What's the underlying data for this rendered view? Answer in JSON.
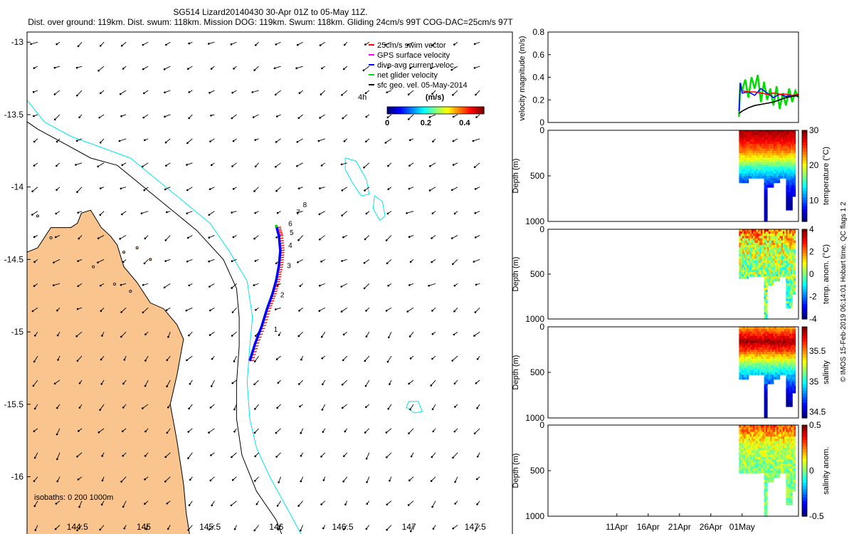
{
  "header": {
    "title": "SG514 Lizard20140430 30-Apr 01Z to 05-May 11Z.",
    "stats": "Dist. over ground: 119km. Dist. swum: 118km. Mission DOG: 119km. Swum: 118km. Gliding 24cm/s 99T COG-DAC=25cm/s 97T"
  },
  "copyright": "© IMOS 15-Feb-2019 06:14:01 Hobart time. QC flags 1  2",
  "colors": {
    "land": "#f9c48e",
    "isobath200": "#000000",
    "isobath1000": "#00e5ee",
    "swim": "#ff0000",
    "gps": "#ff00ff",
    "dac": "#0000ff",
    "net": "#00dd00",
    "geo": "#000000"
  },
  "chart_data": [
    {
      "id": "map",
      "type": "scatter",
      "title": "glider track and surface geostrophic velocity",
      "x_ticks": [
        "144.5",
        "145",
        "145.5",
        "146",
        "146.5",
        "147",
        "147.5"
      ],
      "y_ticks": [
        "-13",
        "-13.5",
        "-14",
        "-14.5",
        "-15",
        "-15.5",
        "-16"
      ],
      "xlim": [
        144.12,
        147.78
      ],
      "ylim": [
        -16.42,
        -12.93
      ],
      "legend": [
        {
          "label": "25cm/s swim vector",
          "color": "#ff0000"
        },
        {
          "label": "GPS surface velocity",
          "color": "#ff00ff"
        },
        {
          "label": "dive-avg current veloc.",
          "color": "#0000ff"
        },
        {
          "label": "net glider velocity",
          "color": "#00dd00"
        },
        {
          "label": "sfc geo. vel. 05-May-2014",
          "color": "#000000"
        }
      ],
      "scale_label": "4h",
      "colorbar": {
        "title": "(m/s)",
        "ticks": [
          "0",
          "0.2",
          "0.4"
        ],
        "range": [
          0,
          0.5
        ]
      },
      "isobath_label": "isobaths: 0   200  1000m",
      "track_labels": [
        {
          "t": "1",
          "lon": 145.98,
          "lat": -15.0
        },
        {
          "t": "2",
          "lon": 146.03,
          "lat": -14.76
        },
        {
          "t": "3",
          "lon": 146.08,
          "lat": -14.56
        },
        {
          "t": "4",
          "lon": 146.09,
          "lat": -14.42
        },
        {
          "t": "5",
          "lon": 146.1,
          "lat": -14.33
        },
        {
          "t": "6",
          "lon": 146.09,
          "lat": -14.27
        },
        {
          "t": "7",
          "lon": 146.15,
          "lat": -14.19
        },
        {
          "t": "8",
          "lon": 146.2,
          "lat": -14.14
        }
      ],
      "track": [
        [
          145.8,
          -15.2
        ],
        [
          145.84,
          -15.08
        ],
        [
          145.89,
          -14.96
        ],
        [
          145.93,
          -14.84
        ],
        [
          145.97,
          -14.74
        ],
        [
          146.0,
          -14.64
        ],
        [
          146.02,
          -14.54
        ],
        [
          146.03,
          -14.44
        ],
        [
          146.02,
          -14.34
        ],
        [
          146.0,
          -14.27
        ]
      ],
      "coast": [
        [
          144.12,
          -14.45
        ],
        [
          144.2,
          -14.42
        ],
        [
          144.3,
          -14.28
        ],
        [
          144.45,
          -14.28
        ],
        [
          144.5,
          -14.25
        ],
        [
          144.53,
          -14.18
        ],
        [
          144.6,
          -14.16
        ],
        [
          144.68,
          -14.28
        ],
        [
          144.75,
          -14.34
        ],
        [
          144.8,
          -14.4
        ],
        [
          144.85,
          -14.55
        ],
        [
          144.95,
          -14.66
        ],
        [
          145.05,
          -14.8
        ],
        [
          145.15,
          -14.84
        ],
        [
          145.25,
          -14.95
        ],
        [
          145.3,
          -15.05
        ],
        [
          145.25,
          -15.3
        ],
        [
          145.2,
          -15.5
        ],
        [
          145.25,
          -15.75
        ],
        [
          145.3,
          -16.05
        ],
        [
          145.32,
          -16.25
        ],
        [
          145.35,
          -16.42
        ],
        [
          144.12,
          -16.42
        ]
      ],
      "iso200": [
        [
          144.12,
          -13.55
        ],
        [
          144.2,
          -13.6
        ],
        [
          144.4,
          -13.7
        ],
        [
          144.6,
          -13.8
        ],
        [
          144.8,
          -13.85
        ],
        [
          145.0,
          -14.0
        ],
        [
          145.2,
          -14.15
        ],
        [
          145.4,
          -14.3
        ],
        [
          145.6,
          -14.5
        ],
        [
          145.7,
          -14.7
        ],
        [
          145.72,
          -14.9
        ],
        [
          145.72,
          -15.1
        ],
        [
          145.7,
          -15.35
        ],
        [
          145.7,
          -15.6
        ],
        [
          145.74,
          -15.85
        ],
        [
          145.85,
          -16.1
        ],
        [
          146.0,
          -16.3
        ],
        [
          146.05,
          -16.42
        ]
      ],
      "iso1000": [
        [
          144.12,
          -13.4
        ],
        [
          144.25,
          -13.55
        ],
        [
          144.45,
          -13.65
        ],
        [
          144.6,
          -13.7
        ],
        [
          144.9,
          -13.8
        ],
        [
          145.1,
          -13.95
        ],
        [
          145.3,
          -14.1
        ],
        [
          145.5,
          -14.25
        ],
        [
          145.65,
          -14.45
        ],
        [
          145.78,
          -14.65
        ],
        [
          145.82,
          -14.9
        ],
        [
          145.8,
          -15.1
        ],
        [
          145.78,
          -15.35
        ],
        [
          145.8,
          -15.6
        ],
        [
          145.85,
          -15.8
        ],
        [
          145.95,
          -16.0
        ],
        [
          146.1,
          -16.25
        ],
        [
          146.2,
          -16.42
        ]
      ],
      "reef1": [
        [
          146.52,
          -13.8
        ],
        [
          146.6,
          -13.82
        ],
        [
          146.68,
          -13.95
        ],
        [
          146.7,
          -14.05
        ],
        [
          146.64,
          -14.06
        ],
        [
          146.58,
          -13.98
        ],
        [
          146.52,
          -13.88
        ]
      ],
      "reef2": [
        [
          146.74,
          -14.06
        ],
        [
          146.8,
          -14.1
        ],
        [
          146.82,
          -14.2
        ],
        [
          146.78,
          -14.23
        ],
        [
          146.73,
          -14.15
        ]
      ],
      "reef3": [
        [
          147.0,
          -15.48
        ],
        [
          147.07,
          -15.48
        ],
        [
          147.1,
          -15.55
        ],
        [
          147.04,
          -15.56
        ],
        [
          146.98,
          -15.52
        ]
      ]
    },
    {
      "id": "velocity",
      "type": "line",
      "ylabel": "velocity magnitude (m/s)",
      "ylim": [
        0,
        0.8
      ],
      "y_ticks": [
        "0",
        "0.2",
        "0.4",
        "0.6",
        "0.8"
      ],
      "xlim": [
        0,
        40
      ],
      "series": [
        {
          "name": "net glider velocity",
          "color": "#00dd00",
          "x": [
            30.5,
            30.7,
            31,
            31.5,
            32,
            32.5,
            33,
            33.5,
            34,
            34.5,
            35,
            35.5,
            36,
            36.5,
            37,
            37.5,
            38,
            38.5,
            39,
            39.5,
            40
          ],
          "y": [
            0.05,
            0.35,
            0.28,
            0.38,
            0.22,
            0.4,
            0.3,
            0.42,
            0.18,
            0.36,
            0.2,
            0.3,
            0.15,
            0.32,
            0.12,
            0.26,
            0.15,
            0.3,
            0.18,
            0.28,
            0.22
          ]
        },
        {
          "name": "dive-avg current veloc.",
          "color": "#0000ff",
          "x": [
            30.5,
            30.7,
            31,
            32,
            33,
            34,
            35,
            36,
            37,
            38,
            39,
            40
          ],
          "y": [
            0.1,
            0.35,
            0.26,
            0.27,
            0.24,
            0.3,
            0.26,
            0.22,
            0.25,
            0.23,
            0.24,
            0.23
          ]
        },
        {
          "name": "swim vector",
          "color": "#ff0000",
          "x": [
            31,
            32,
            33,
            34,
            35,
            36,
            37,
            38,
            39,
            40
          ],
          "y": [
            0.28,
            0.27,
            0.27,
            0.26,
            0.25,
            0.26,
            0.25,
            0.25,
            0.24,
            0.25
          ]
        },
        {
          "name": "sfc geo. vel.",
          "color": "#000000",
          "x": [
            30.5,
            31,
            32,
            33,
            34,
            35,
            36,
            37,
            38,
            39,
            40
          ],
          "y": [
            0.08,
            0.1,
            0.13,
            0.15,
            0.16,
            0.17,
            0.18,
            0.2,
            0.22,
            0.23,
            0.24
          ]
        }
      ]
    },
    {
      "id": "temperature",
      "type": "heatmap",
      "ylabel": "Depth (m)",
      "ylim": [
        1000,
        0
      ],
      "y_ticks": [
        "0",
        "500",
        "1000"
      ],
      "xlim": [
        0,
        40
      ],
      "data_x": [
        30.5,
        39.5
      ],
      "cbar_label": "temperature (°C)",
      "cbar_range": [
        4,
        30
      ],
      "cbar_ticks": [
        "10",
        "20",
        "30"
      ],
      "depth_profile": [
        [
          0,
          29
        ],
        [
          100,
          27
        ],
        [
          200,
          24
        ],
        [
          300,
          20
        ],
        [
          400,
          15
        ],
        [
          500,
          11
        ],
        [
          600,
          8
        ],
        [
          700,
          6
        ],
        [
          800,
          5
        ]
      ],
      "noise": 1.0,
      "bottom": [
        [
          30.5,
          560
        ],
        [
          32,
          520
        ],
        [
          34,
          520
        ],
        [
          34.4,
          1000
        ],
        [
          35,
          600
        ],
        [
          36,
          560
        ],
        [
          37,
          500
        ],
        [
          38,
          850
        ],
        [
          39,
          720
        ],
        [
          39.5,
          900
        ]
      ]
    },
    {
      "id": "temp_anom",
      "type": "heatmap",
      "ylabel": "Depth (m)",
      "ylim": [
        1000,
        0
      ],
      "y_ticks": [
        "0",
        "500",
        "1000"
      ],
      "xlim": [
        0,
        40
      ],
      "data_x": [
        30.5,
        39.5
      ],
      "cbar_label": "temp. anom. (°C)",
      "cbar_range": [
        -4,
        4
      ],
      "cbar_ticks": [
        "4",
        "2",
        "0",
        "-2",
        "-4"
      ],
      "depth_profile": [
        [
          0,
          2.0
        ],
        [
          100,
          1.2
        ],
        [
          200,
          0.6
        ],
        [
          400,
          0.2
        ],
        [
          600,
          0
        ],
        [
          800,
          -0.2
        ]
      ],
      "noise": 1.4,
      "bottom": [
        [
          30.5,
          540
        ],
        [
          32,
          520
        ],
        [
          34,
          520
        ],
        [
          34.4,
          1000
        ],
        [
          35,
          600
        ],
        [
          36,
          560
        ],
        [
          37,
          500
        ],
        [
          38,
          850
        ],
        [
          39,
          720
        ],
        [
          39.5,
          900
        ]
      ]
    },
    {
      "id": "salinity",
      "type": "heatmap",
      "ylabel": "Depth (m)",
      "ylim": [
        1000,
        0
      ],
      "y_ticks": [
        "0",
        "500",
        "1000"
      ],
      "xlim": [
        0,
        40
      ],
      "data_x": [
        30.5,
        39.5
      ],
      "cbar_label": "salinity",
      "cbar_range": [
        34.4,
        35.9
      ],
      "cbar_ticks": [
        "35.5",
        "35",
        "34.5"
      ],
      "depth_profile": [
        [
          0,
          35.5
        ],
        [
          150,
          35.85
        ],
        [
          250,
          35.6
        ],
        [
          400,
          35.15
        ],
        [
          550,
          34.8
        ],
        [
          700,
          34.55
        ],
        [
          850,
          34.45
        ]
      ],
      "noise": 0.08,
      "bottom": [
        [
          30.5,
          560
        ],
        [
          32,
          520
        ],
        [
          34,
          520
        ],
        [
          34.4,
          1000
        ],
        [
          35,
          600
        ],
        [
          36,
          560
        ],
        [
          37,
          500
        ],
        [
          38,
          850
        ],
        [
          39,
          720
        ],
        [
          39.5,
          900
        ]
      ]
    },
    {
      "id": "sal_anom",
      "type": "heatmap",
      "ylabel": "Depth (m)",
      "ylim": [
        1000,
        0
      ],
      "y_ticks": [
        "0",
        "500",
        "1000"
      ],
      "xlim": [
        0,
        40
      ],
      "data_x": [
        30.5,
        39.5
      ],
      "cbar_label": "salinity anom.",
      "cbar_range": [
        -0.5,
        0.5
      ],
      "cbar_ticks": [
        "0.5",
        "0",
        "-0.5"
      ],
      "depth_profile": [
        [
          0,
          0.3
        ],
        [
          100,
          0.2
        ],
        [
          200,
          0.08
        ],
        [
          400,
          0.02
        ],
        [
          600,
          0
        ]
      ],
      "noise": 0.1,
      "bottom": [
        [
          30.5,
          520
        ],
        [
          32,
          520
        ],
        [
          34,
          520
        ],
        [
          34.4,
          1000
        ],
        [
          35,
          600
        ],
        [
          36,
          560
        ],
        [
          37,
          500
        ],
        [
          38,
          850
        ],
        [
          39,
          720
        ],
        [
          39.5,
          900
        ]
      ],
      "x_ticks": [
        "11Apr",
        "16Apr",
        "21Apr",
        "26Apr",
        "01May"
      ],
      "x_tick_vals": [
        11,
        16,
        21,
        26,
        31
      ]
    }
  ]
}
